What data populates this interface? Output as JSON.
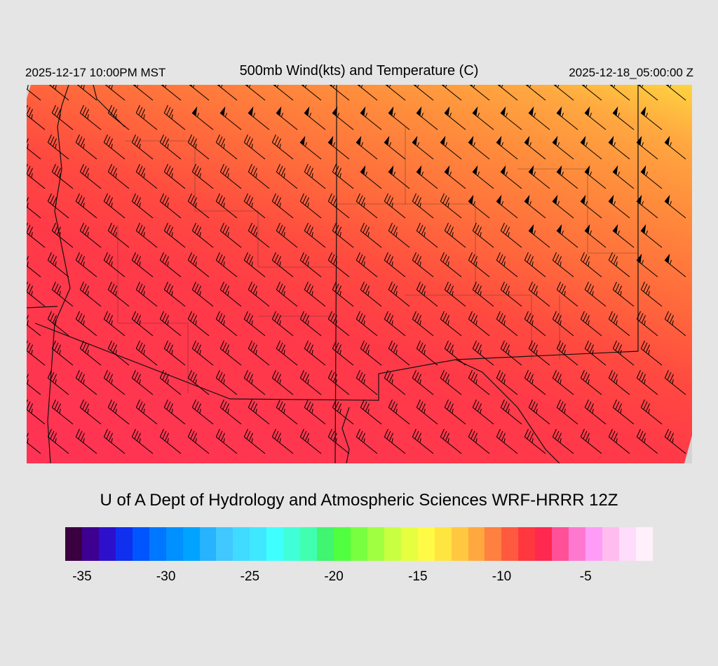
{
  "header": {
    "valid_local": "2025-12-17 10:00PM MST",
    "title": "500mb Wind(kts) and Temperature (C)",
    "valid_utc": "2025-12-18_05:00:00 Z"
  },
  "footer": "U of A Dept of Hydrology and Atmospheric Sciences WRF-HRRR 12Z",
  "colorbar": {
    "min": -36,
    "max": -1,
    "step": 1,
    "colors": [
      "#3b0040",
      "#3e0090",
      "#2d10cc",
      "#1030f0",
      "#0055ff",
      "#0077ff",
      "#0090ff",
      "#00a3ff",
      "#28b3ff",
      "#40c8ff",
      "#40dbff",
      "#40e8ff",
      "#40ffff",
      "#40ffd8",
      "#40ffb0",
      "#40f570",
      "#50ff40",
      "#78ff40",
      "#a0ff40",
      "#c8ff40",
      "#e5ff40",
      "#fffa45",
      "#ffe540",
      "#ffc840",
      "#ffa840",
      "#ff8040",
      "#ff5a40",
      "#ff3840",
      "#ff2850",
      "#ff5098",
      "#ff78d0",
      "#ff9cf8",
      "#ffbcef",
      "#ffdcfb",
      "#fff0fc"
    ],
    "ticks": [
      {
        "value": -35,
        "label": "-35"
      },
      {
        "value": -30,
        "label": "-30"
      },
      {
        "value": -25,
        "label": "-25"
      },
      {
        "value": -20,
        "label": "-20"
      },
      {
        "value": -15,
        "label": "-15"
      },
      {
        "value": -10,
        "label": "-10"
      },
      {
        "value": -5,
        "label": "-5"
      }
    ]
  },
  "map": {
    "field_colors": {
      "coldest": "#ffe540",
      "cold": "#ffa840",
      "mid": "#ff8040",
      "warm": "#ff5a40",
      "warmer": "#ff3840",
      "warmest": "#ff3355"
    },
    "wind_direction": "northwest"
  }
}
